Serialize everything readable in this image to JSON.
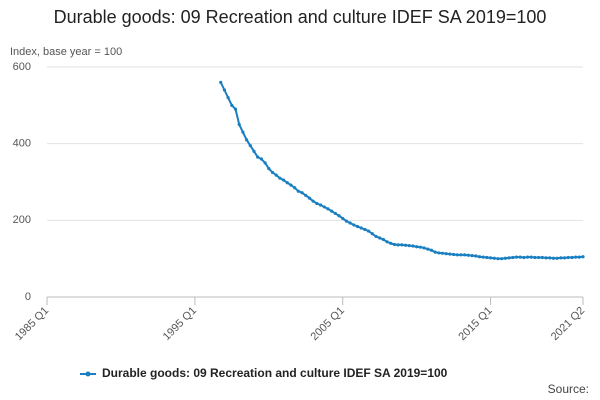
{
  "chart_data": {
    "type": "line",
    "title": "Durable goods: 09 Recreation and culture IDEF SA 2019=100",
    "y_label": "Index, base year = 100",
    "source": "Source:",
    "categories": [
      "1985 Q1",
      null,
      null,
      null,
      null,
      null,
      null,
      null,
      null,
      null,
      null,
      null,
      null,
      null,
      null,
      null,
      null,
      null,
      null,
      null,
      null,
      null,
      null,
      null,
      null,
      null,
      null,
      null,
      null,
      null,
      null,
      null,
      null,
      null,
      null,
      null,
      null,
      null,
      null,
      null,
      "1995 Q1",
      null,
      null,
      null,
      null,
      null,
      null,
      null,
      null,
      null,
      null,
      null,
      null,
      null,
      null,
      null,
      null,
      null,
      null,
      null,
      null,
      null,
      null,
      null,
      null,
      null,
      null,
      null,
      null,
      null,
      null,
      null,
      null,
      null,
      null,
      null,
      null,
      null,
      null,
      null,
      "2005 Q1",
      null,
      null,
      null,
      null,
      null,
      null,
      null,
      null,
      null,
      null,
      null,
      null,
      null,
      null,
      null,
      null,
      null,
      null,
      null,
      null,
      null,
      null,
      null,
      null,
      null,
      null,
      null,
      null,
      null,
      null,
      null,
      null,
      null,
      null,
      null,
      null,
      null,
      null,
      null,
      "2015 Q1",
      null,
      null,
      null,
      null,
      null,
      null,
      null,
      null,
      null,
      null,
      null,
      null,
      null,
      null,
      null,
      null,
      null,
      null,
      null,
      null,
      null,
      null,
      null,
      null,
      "2021 Q2"
    ],
    "series": [
      {
        "name": "Durable goods: 09 Recreation and culture IDEF SA 2019=100",
        "color": "#1a7fc1",
        "values": [
          null,
          null,
          null,
          null,
          null,
          null,
          null,
          null,
          null,
          null,
          null,
          null,
          null,
          null,
          null,
          null,
          null,
          null,
          null,
          null,
          null,
          null,
          null,
          null,
          null,
          null,
          null,
          null,
          null,
          null,
          null,
          null,
          null,
          null,
          null,
          null,
          null,
          null,
          null,
          null,
          null,
          null,
          null,
          null,
          null,
          null,
          null,
          560,
          540,
          520,
          500,
          490,
          450,
          430,
          410,
          395,
          380,
          365,
          360,
          350,
          335,
          325,
          318,
          310,
          305,
          298,
          292,
          285,
          276,
          272,
          265,
          258,
          250,
          244,
          240,
          235,
          230,
          224,
          218,
          212,
          205,
          198,
          193,
          188,
          184,
          180,
          176,
          172,
          165,
          158,
          154,
          150,
          144,
          140,
          137,
          136,
          136,
          135,
          134,
          133,
          131,
          130,
          128,
          125,
          122,
          117,
          115,
          114,
          113,
          112,
          111,
          110,
          110,
          110,
          109,
          108,
          107,
          105,
          104,
          103,
          102,
          101,
          100,
          100,
          101,
          102,
          103,
          104,
          104,
          103,
          104,
          104,
          103,
          103,
          103,
          102,
          102,
          101,
          101,
          102,
          102,
          103,
          103,
          104,
          104,
          105
        ]
      }
    ],
    "ylim": [
      0,
      600
    ],
    "yticks": [
      0,
      200,
      400,
      600
    ],
    "grid": true
  }
}
